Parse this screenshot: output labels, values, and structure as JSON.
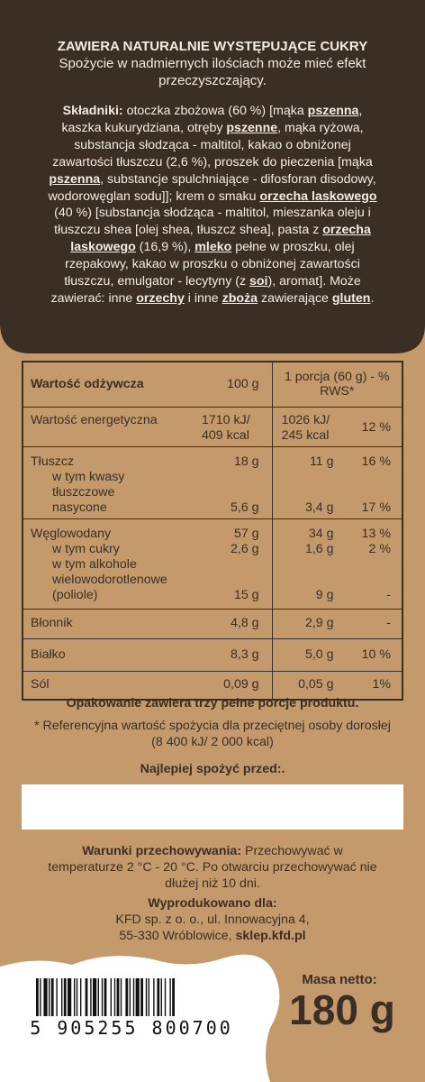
{
  "warning": {
    "title": "ZAWIERA NATURALNIE WYSTĘPUJĄCE CUKRY",
    "text": "Spożycie w nadmiernych ilościach może mieć efekt przeczyszczający."
  },
  "ingredients": {
    "label": "Składniki:",
    "t1": " otoczka zbożowa (60 %) [mąka ",
    "a1": "pszenna",
    "t2": ", kaszka kukurydziana, otręby ",
    "a2": "pszenne",
    "t3": ", mąka ryżowa, substancja słodząca - maltitol, kakao o obniżonej zawartości tłuszczu (2,6 %), proszek do pieczenia [mąka ",
    "a3": "pszenna",
    "t4": ", substancje spulchniające - difosforan disodowy, wodorowęglan sodu]]; krem o smaku ",
    "a4": "orzecha laskowego",
    "t5": " (40 %) [substancja słodząca - maltitol, mieszanka oleju i tłuszczu shea [olej shea, tłuszcz shea], pasta z ",
    "a5": "orzecha laskowego",
    "t6": " (16,9 %), ",
    "a6": "mleko",
    "t7": " pełne w proszku, olej rzepakowy, kakao w proszku o obniżonej zawartości tłuszczu, emulgator - lecytyny (z ",
    "a7": "soi",
    "t8": "), aromat]. Może zawierać: inne ",
    "a8": "orzechy",
    "t9": " i inne ",
    "a9": "zboża",
    "t10": " zawierające ",
    "a10": "gluten",
    "t11": "."
  },
  "nutrition": {
    "header": {
      "label": "Wartość odżywcza",
      "col100": "100 g",
      "colPortion": "1 porcja (60 g) - % RWS*"
    },
    "energy": {
      "label": "Wartość energetyczna",
      "v100_kj": "1710 kJ/",
      "v100_kcal": "409 kcal",
      "vp_kj": "1026 kJ/",
      "vp_kcal": "245 kcal",
      "rws": "12 %"
    },
    "fat": {
      "label": "Tłuszcz",
      "v100": "18 g",
      "vp": "11 g",
      "rws": "16 %"
    },
    "saturated": {
      "label": "w tym kwasy tłuszczowe nasycone",
      "v100": "5,6 g",
      "vp": "3,4 g",
      "rws": "17 %"
    },
    "carbs": {
      "label": "Węglowodany",
      "v100": "57 g",
      "vp": "34 g",
      "rws": "13 %"
    },
    "sugars": {
      "label": "w tym cukry",
      "v100": "2,6 g",
      "vp": "1,6 g",
      "rws": "2 %"
    },
    "polyols": {
      "label": "w tym alkohole wielowodorotlenowe (poliole)",
      "v100": "15 g",
      "vp": "9 g",
      "rws": "-"
    },
    "fibre": {
      "label": "Błonnik",
      "v100": "4,8 g",
      "vp": "2,9 g",
      "rws": "-"
    },
    "protein": {
      "label": "Białko",
      "v100": "8,3 g",
      "vp": "5,0 g",
      "rws": "10 %"
    },
    "salt": {
      "label": "Sól",
      "v100": "0,09 g",
      "vp": "0,05 g",
      "rws": "1%"
    }
  },
  "pack_note": "Opakowanie zawiera trzy pełne porcje produktu.",
  "rws_note": "* Referencyjna wartość spożycia dla przeciętnej osoby dorosłej (8 400 kJ/ 2 000 kcal)",
  "best_before": "Najlepiej spożyć przed:.",
  "storage": {
    "label": "Warunki przechowywania:",
    "text": " Przechowywać w temperaturze 2 °C - 20 °C. Po otwarciu przechowywać nie dłużej niż 10 dni."
  },
  "producer": {
    "label": "Wyprodukowano dla:",
    "line1": "KFD sp. z o. o., ul. Innowacyjna 4,",
    "line2a": "55-330 Wróblowice, ",
    "line2b": "sklep.kfd.pl"
  },
  "barcode": {
    "digits": "5 905255 800700"
  },
  "net": {
    "label": "Masa netto:",
    "value": "180 g"
  },
  "colors": {
    "dark": "#3b2e24",
    "kraft": "#c49a6c",
    "cream": "#f3ece4"
  }
}
